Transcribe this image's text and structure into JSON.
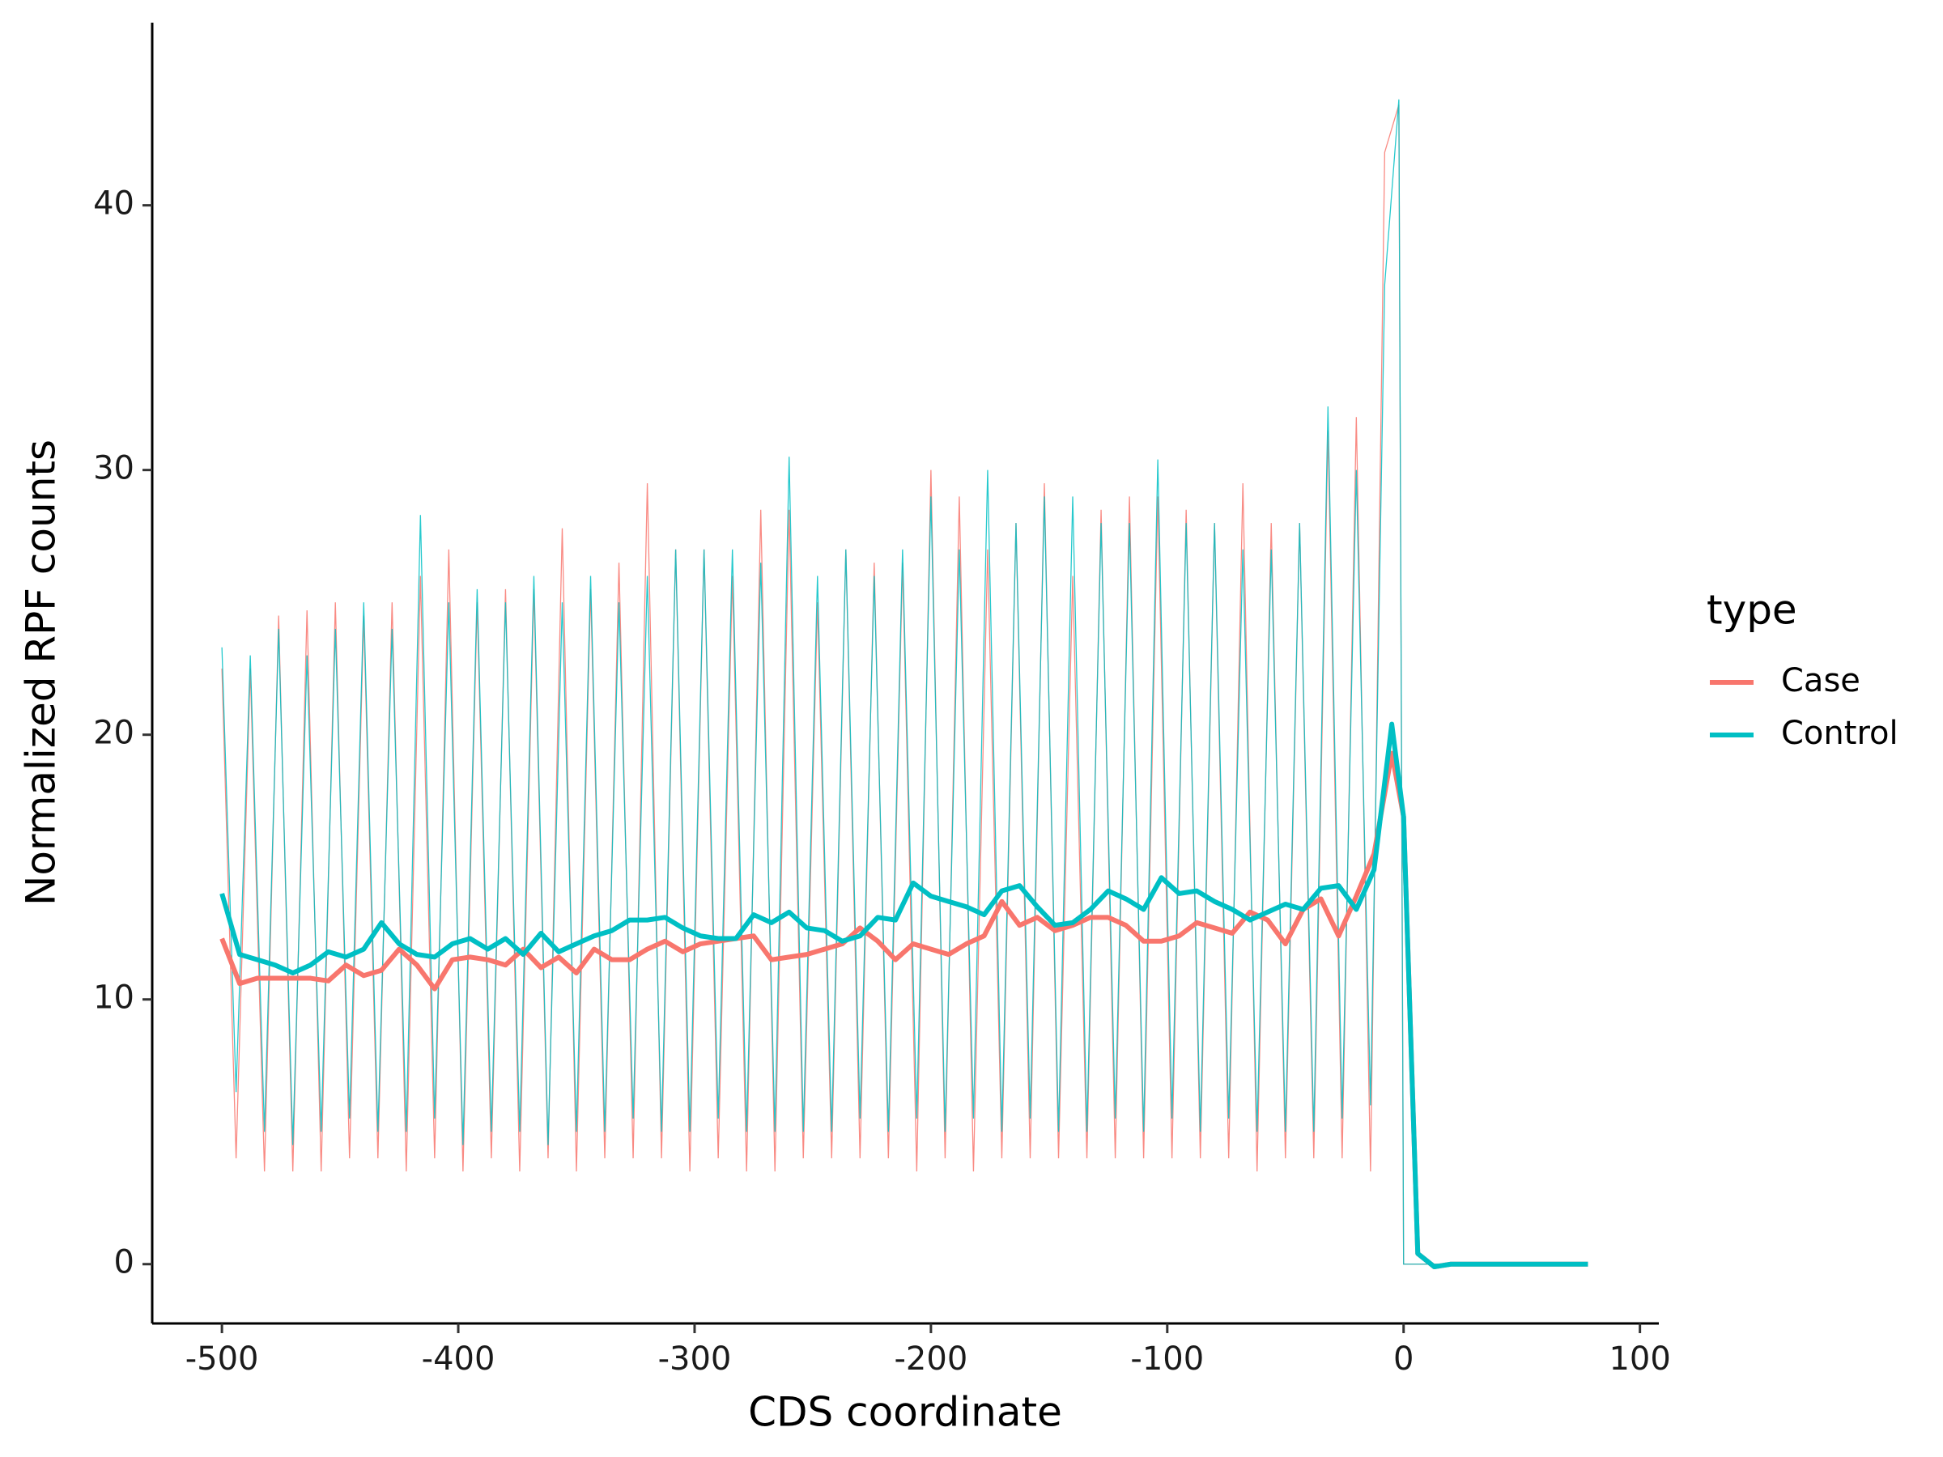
{
  "chart_data": {
    "type": "line",
    "x_label": "CDS coordinate",
    "y_label": "Normalized RPF counts",
    "legend_title": "type",
    "legend_position": "right",
    "x": [
      -500,
      -492.5,
      -485,
      -477.5,
      -470,
      -462.5,
      -455,
      -447.5,
      -440,
      -432.5,
      -425,
      -417.5,
      -410,
      -402.5,
      -395,
      -387.5,
      -380,
      -372.5,
      -365,
      -357.5,
      -350,
      -342.5,
      -335,
      -327.5,
      -320,
      -312.5,
      -305,
      -297.5,
      -290,
      -282.5,
      -275,
      -267.5,
      -260,
      -252.5,
      -245,
      -237.5,
      -230,
      -222.5,
      -215,
      -207.5,
      -200,
      -192.5,
      -185,
      -177.5,
      -170,
      -162.5,
      -155,
      -147.5,
      -140,
      -132.5,
      -125,
      -117.5,
      -110,
      -102.5,
      -95,
      -87.5,
      -80,
      -72.5,
      -65,
      -57.5,
      -50,
      -42.5,
      -35,
      -27.5,
      -20,
      -12.5,
      -5,
      0,
      6,
      13,
      20,
      40,
      60,
      78
    ],
    "series": [
      {
        "name": "Case",
        "color": "#F8766D",
        "values": [
          12.3,
          10.6,
          10.8,
          10.8,
          10.8,
          10.8,
          10.7,
          11.3,
          10.9,
          11.1,
          11.9,
          11.3,
          10.4,
          11.5,
          11.6,
          11.5,
          11.3,
          11.9,
          11.2,
          11.6,
          11.0,
          11.9,
          11.5,
          11.5,
          11.9,
          12.2,
          11.8,
          12.1,
          12.2,
          12.3,
          12.4,
          11.5,
          11.6,
          11.7,
          11.9,
          12.1,
          12.7,
          12.2,
          11.5,
          12.1,
          11.9,
          11.7,
          12.1,
          12.4,
          13.7,
          12.8,
          13.1,
          12.6,
          12.8,
          13.1,
          13.1,
          12.8,
          12.2,
          12.2,
          12.4,
          12.9,
          12.7,
          12.5,
          13.3,
          13.0,
          12.1,
          13.4,
          13.8,
          12.4,
          13.9,
          15.5,
          19.3,
          16.9,
          0.4,
          -0.1,
          0,
          0,
          0,
          0
        ],
        "raw": {
          "x": [
            -500,
            -494,
            -488,
            -482,
            -476,
            -470,
            -464,
            -458,
            -452,
            -446,
            -440,
            -434,
            -428,
            -422,
            -416,
            -410,
            -404,
            -398,
            -392,
            -386,
            -380,
            -374,
            -368,
            -362,
            -356,
            -350,
            -344,
            -338,
            -332,
            -326,
            -320,
            -314,
            -308,
            -302,
            -296,
            -290,
            -284,
            -278,
            -272,
            -266,
            -260,
            -254,
            -248,
            -242,
            -236,
            -230,
            -224,
            -218,
            -212,
            -206,
            -200,
            -194,
            -188,
            -182,
            -176,
            -170,
            -164,
            -158,
            -152,
            -146,
            -140,
            -134,
            -128,
            -122,
            -116,
            -110,
            -104,
            -98,
            -92,
            -86,
            -80,
            -74,
            -68,
            -62,
            -56,
            -50,
            -44,
            -38,
            -32,
            -26,
            -20,
            -14,
            -8,
            -2,
            0,
            78
          ],
          "values": [
            22.5,
            4,
            22.5,
            3.5,
            24.5,
            3.5,
            24.7,
            3.5,
            25,
            4,
            24.5,
            4,
            25,
            3.5,
            26,
            4,
            27,
            3.5,
            25,
            4,
            25.5,
            3.5,
            25.5,
            4,
            27.8,
            3.5,
            25.5,
            4,
            26.5,
            4,
            29.5,
            4,
            27,
            3.5,
            27,
            4,
            26,
            3.5,
            28.5,
            3.5,
            28.5,
            4,
            25,
            4,
            27,
            4,
            26.5,
            4,
            26.5,
            3.5,
            30,
            4,
            29,
            3.5,
            27,
            4,
            28,
            4,
            29.5,
            4,
            26,
            4,
            28.5,
            4,
            29,
            4,
            29,
            4,
            28.5,
            4,
            28,
            4,
            29.5,
            3.5,
            28,
            4,
            28,
            4,
            31.5,
            4,
            32,
            3.5,
            42,
            43.8,
            0,
            0
          ]
        }
      },
      {
        "name": "Control",
        "color": "#00BFC4",
        "values": [
          14.0,
          11.7,
          11.5,
          11.3,
          11.0,
          11.3,
          11.8,
          11.6,
          11.9,
          12.9,
          12.1,
          11.7,
          11.6,
          12.1,
          12.3,
          11.9,
          12.3,
          11.7,
          12.5,
          11.8,
          12.1,
          12.4,
          12.6,
          13.0,
          13.0,
          13.1,
          12.7,
          12.4,
          12.3,
          12.3,
          13.2,
          12.9,
          13.3,
          12.7,
          12.6,
          12.2,
          12.4,
          13.1,
          13.0,
          14.4,
          13.9,
          13.7,
          13.5,
          13.2,
          14.1,
          14.3,
          13.5,
          12.8,
          12.9,
          13.4,
          14.1,
          13.8,
          13.4,
          14.6,
          14.0,
          14.1,
          13.7,
          13.4,
          13.0,
          13.3,
          13.6,
          13.4,
          14.2,
          14.3,
          13.4,
          14.9,
          20.4,
          16.9,
          0.4,
          -0.1,
          0,
          0,
          0,
          0
        ],
        "raw": {
          "x": [
            -500,
            -494,
            -488,
            -482,
            -476,
            -470,
            -464,
            -458,
            -452,
            -446,
            -440,
            -434,
            -428,
            -422,
            -416,
            -410,
            -404,
            -398,
            -392,
            -386,
            -380,
            -374,
            -368,
            -362,
            -356,
            -350,
            -344,
            -338,
            -332,
            -326,
            -320,
            -314,
            -308,
            -302,
            -296,
            -290,
            -284,
            -278,
            -272,
            -266,
            -260,
            -254,
            -248,
            -242,
            -236,
            -230,
            -224,
            -218,
            -212,
            -206,
            -200,
            -194,
            -188,
            -182,
            -176,
            -170,
            -164,
            -158,
            -152,
            -146,
            -140,
            -134,
            -128,
            -122,
            -116,
            -110,
            -104,
            -98,
            -92,
            -86,
            -80,
            -74,
            -68,
            -62,
            -56,
            -50,
            -44,
            -38,
            -32,
            -26,
            -20,
            -14,
            -8,
            -2,
            0,
            78
          ],
          "values": [
            23.3,
            6.5,
            23,
            5,
            24,
            4.5,
            23,
            5,
            24,
            5.5,
            25,
            5,
            24,
            5,
            28.3,
            5.5,
            25,
            4.5,
            25.5,
            5,
            25,
            5,
            26,
            4.5,
            25,
            5,
            26,
            5,
            25,
            5.5,
            26,
            5,
            27,
            5,
            27,
            5.5,
            27,
            5,
            26.5,
            5,
            30.5,
            5,
            26,
            5,
            27,
            5.5,
            26,
            5,
            27,
            5.5,
            29,
            5,
            27,
            5.5,
            30,
            5,
            28,
            5.5,
            29,
            5,
            29,
            5,
            28,
            5.5,
            28,
            5,
            30.4,
            5.5,
            28,
            5,
            28,
            5.5,
            27,
            5,
            27,
            5,
            28,
            5,
            32.4,
            5.5,
            30,
            6,
            37,
            44,
            0,
            0
          ]
        }
      }
    ],
    "xlim": [
      -529.5,
      108
    ],
    "xticks": [
      -500,
      -400,
      -300,
      -200,
      -100,
      0,
      100
    ],
    "ylim": [
      -2.24,
      46.9
    ],
    "yticks": [
      0,
      10,
      20,
      30,
      40
    ],
    "grid": false
  }
}
